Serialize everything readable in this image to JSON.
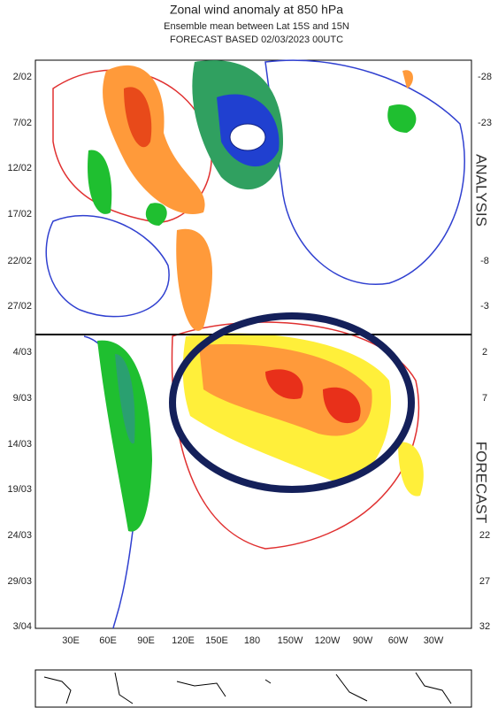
{
  "header": {
    "title": "Zonal wind anomaly at 850 hPa",
    "subtitle": "Ensemble mean between  Lat 15S and 15N",
    "forecast_line": "FORECAST  BASED 02/03/2023 00UTC"
  },
  "left_axis": [
    "2/02",
    "7/02",
    "12/02",
    "17/02",
    "22/02",
    "27/02",
    "4/03",
    "9/03",
    "14/03",
    "19/03",
    "24/03",
    "29/03",
    "3/04"
  ],
  "right_axis": [
    "-28",
    "-23",
    "-8",
    "-3",
    "2",
    "7",
    "22",
    "27",
    "32"
  ],
  "x_axis": [
    "30E",
    "60E",
    "90E",
    "120E",
    "150E",
    "180",
    "150W",
    "120W",
    "90W",
    "60W",
    "30W"
  ],
  "section_labels": [
    "ANALYSIS",
    "FORECAST"
  ]
}
